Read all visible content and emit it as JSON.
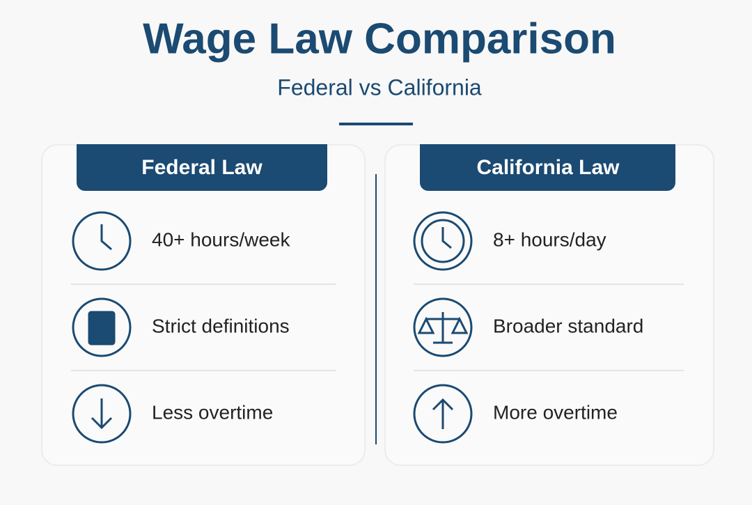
{
  "header": {
    "title": "Wage Law Comparison",
    "subtitle": "Federal vs California"
  },
  "panels": [
    {
      "title": "Federal Law",
      "items": [
        "40+ hours/week",
        "Strict definitions",
        "Less overtime"
      ]
    },
    {
      "title": "California Law",
      "items": [
        "8+ hours/day",
        "Broader standard",
        "More overtime"
      ]
    }
  ]
}
